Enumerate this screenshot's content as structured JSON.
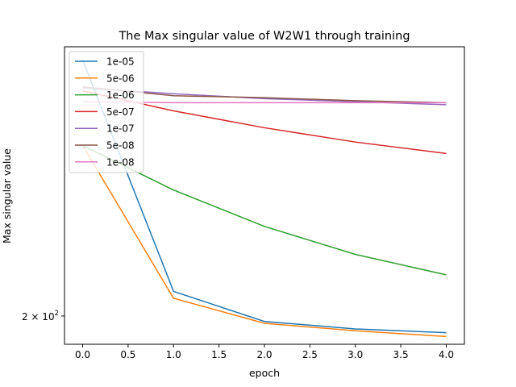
{
  "chart_data": {
    "type": "line",
    "title": "The Max singular value of W2W1 through training",
    "xlabel": "epoch",
    "ylabel": "Max singular value",
    "yscale": "log",
    "x": [
      0,
      1,
      2,
      3,
      4
    ],
    "xticks": [
      "0.0",
      "0.5",
      "1.0",
      "1.5",
      "2.0",
      "2.5",
      "3.0",
      "3.5",
      "4.0"
    ],
    "xtick_values": [
      0,
      0.5,
      1,
      1.5,
      2,
      2.5,
      3,
      3.5,
      4
    ],
    "xlim": [
      -0.2,
      4.2
    ],
    "ylim": [
      185,
      420
    ],
    "ytick_label_base": "2 × 10",
    "ytick_label_exp": "2",
    "ytick_value": 200,
    "grid": false,
    "legend_position": "top-left",
    "series": [
      {
        "name": "1e-05",
        "color": "#1f77b4",
        "values": [
          405,
          214,
          197,
          193,
          191
        ]
      },
      {
        "name": "5e-06",
        "color": "#ff7f0e",
        "values": [
          320,
          210,
          196,
          192,
          189
        ]
      },
      {
        "name": "1e-06",
        "color": "#2ca02c",
        "values": [
          320,
          283,
          256,
          237,
          224
        ]
      },
      {
        "name": "5e-07",
        "color": "#d62728",
        "values": [
          372,
          352,
          336,
          323,
          313
        ]
      },
      {
        "name": "1e-07",
        "color": "#9467bd",
        "values": [
          375,
          369,
          364,
          361,
          358
        ]
      },
      {
        "name": "5e-08",
        "color": "#8c564b",
        "values": [
          376,
          367,
          365,
          362,
          360
        ]
      },
      {
        "name": "1e-08",
        "color": "#e377c2",
        "values": [
          361,
          360,
          360,
          360,
          360
        ]
      }
    ]
  }
}
